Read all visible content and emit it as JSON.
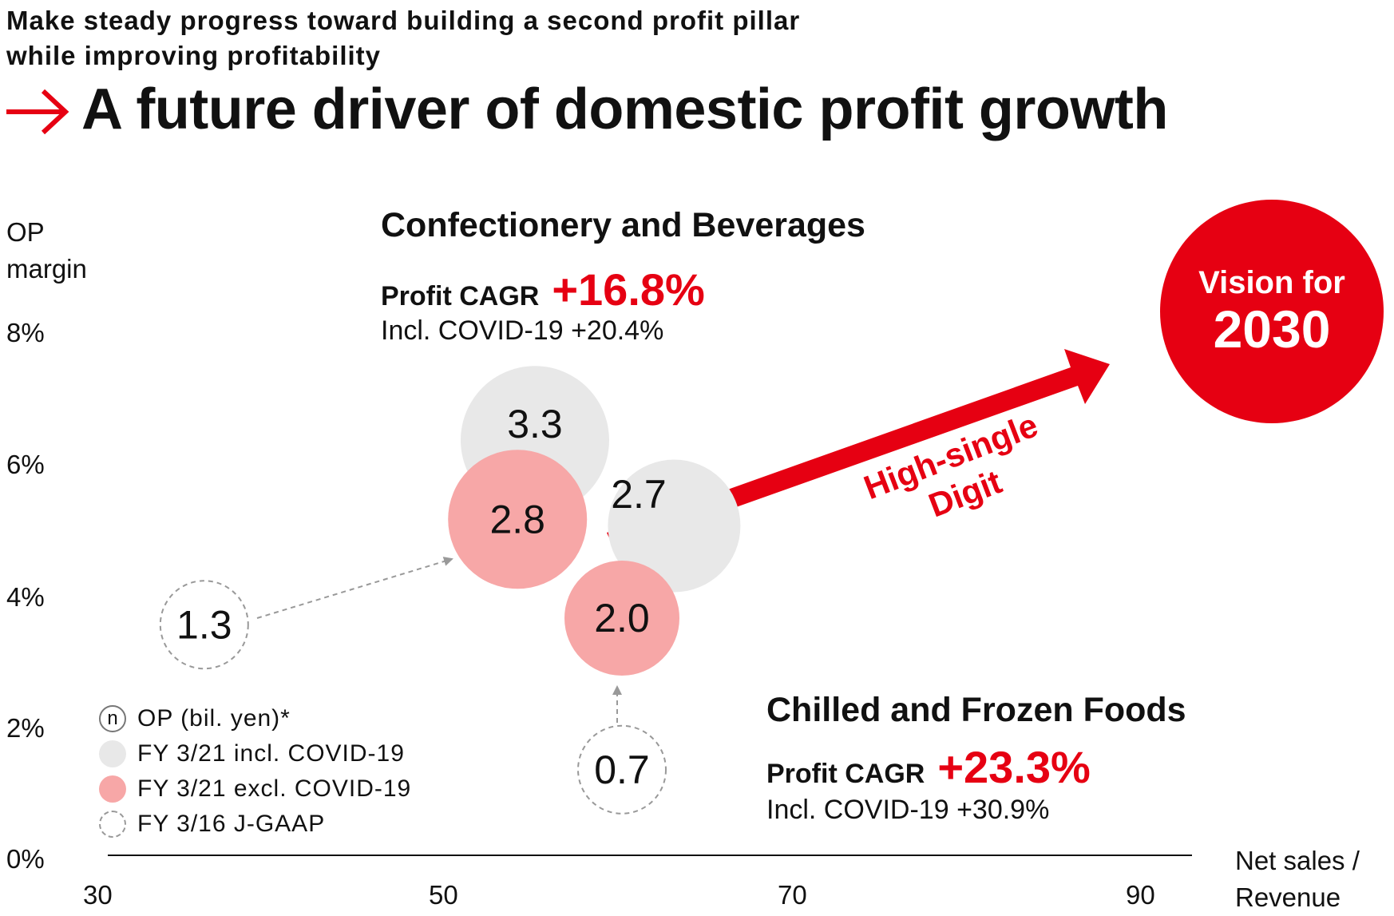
{
  "header": {
    "subtitle": "Make steady progress toward building a second profit pillar while improving profitability",
    "title": "A future driver of domestic profit growth"
  },
  "chart_data": {
    "type": "scatter",
    "xlabel": "Net sales / Revenue",
    "ylabel": "OP margin",
    "xlim": [
      30,
      92
    ],
    "ylim": [
      0,
      8
    ],
    "x_ticks": [
      "30",
      "50",
      "70",
      "90"
    ],
    "y_ticks": [
      "0%",
      "2%",
      "4%",
      "6%",
      "8%"
    ],
    "series": [
      {
        "name": "FY 3/21 incl. COVID-19",
        "color": "#e8e8e8",
        "points": [
          {
            "x": 55,
            "y": 6.3,
            "op": "3.3"
          },
          {
            "x": 63,
            "y": 5.0,
            "op": "2.7"
          }
        ]
      },
      {
        "name": "FY 3/21 excl. COVID-19",
        "color": "#f7a7a7",
        "points": [
          {
            "x": 54,
            "y": 5.1,
            "op": "2.8"
          },
          {
            "x": 60,
            "y": 3.6,
            "op": "2.0"
          }
        ]
      },
      {
        "name": "FY 3/16 J-GAAP",
        "color": "#ffffff",
        "points": [
          {
            "x": 36,
            "y": 3.5,
            "op": "1.3"
          },
          {
            "x": 60,
            "y": 1.3,
            "op": "0.7"
          }
        ]
      }
    ],
    "target": {
      "label_line1": "Vision for",
      "label_line2": "2030",
      "color": "#e60012"
    },
    "trend_arrow": {
      "label": "High-single Digit",
      "label_line1": "High-single",
      "label_line2": "Digit",
      "color": "#e60012"
    }
  },
  "segments": {
    "confectionery": {
      "title": "Confectionery and Beverages",
      "cagr_label": "Profit CAGR",
      "cagr_value": "+16.8%",
      "covid_note": "Incl. COVID-19 +20.4%"
    },
    "chilled": {
      "title": "Chilled and Frozen Foods",
      "cagr_label": "Profit CAGR",
      "cagr_value": "+23.3%",
      "covid_note": "Incl. COVID-19 +30.9%"
    }
  },
  "legend": {
    "items": [
      {
        "symbol": "n",
        "label": "OP (bil. yen)*"
      },
      {
        "label": "FY 3/21 incl. COVID-19"
      },
      {
        "label": "FY 3/21 excl. COVID-19"
      },
      {
        "label": "FY 3/16 J-GAAP"
      }
    ]
  },
  "colors": {
    "accent": "#e60012",
    "gray_bubble": "#e8e8e8",
    "pink_bubble": "#f7a7a7",
    "dashed": "#999999"
  }
}
